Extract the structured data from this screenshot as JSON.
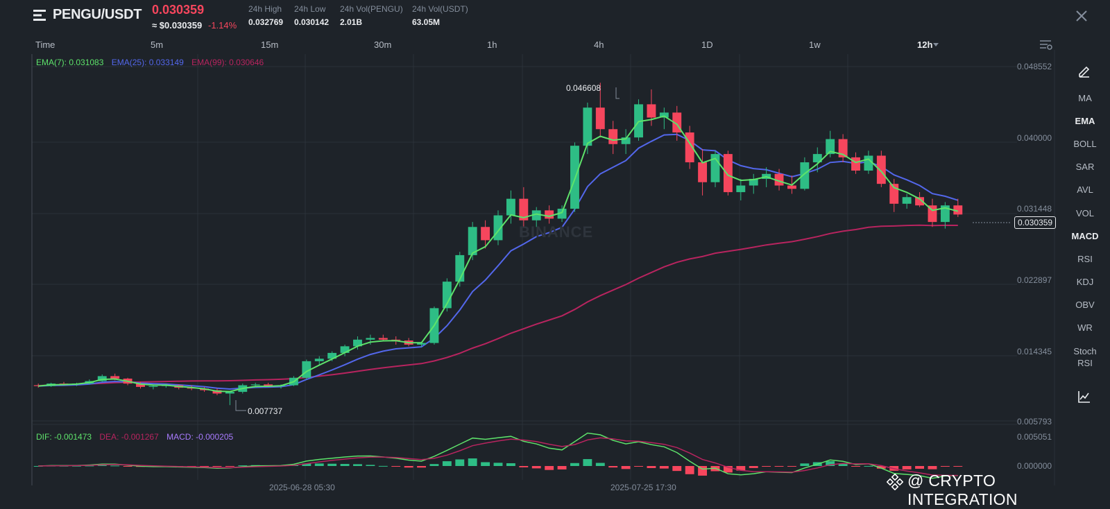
{
  "header": {
    "pair": "PENGU/USDT",
    "price": "0.030359",
    "usd_price": "≈ $0.030359",
    "change": "-1.14%",
    "stats": [
      {
        "label": "24h High",
        "value": "0.032769"
      },
      {
        "label": "24h Low",
        "value": "0.030142"
      },
      {
        "label": "24h Vol(PENGU)",
        "value": "2.01B"
      },
      {
        "label": "24h Vol(USDT)",
        "value": "63.05M"
      }
    ]
  },
  "timeframes": [
    "Time",
    "5m",
    "15m",
    "30m",
    "1h",
    "4h",
    "1D",
    "1w",
    "12h"
  ],
  "active_timeframe": "12h",
  "indicators_legend": {
    "ema7": "EMA(7): 0.031083",
    "ema25": "EMA(25): 0.033149",
    "ema99": "EMA(99): 0.030646"
  },
  "macd_legend": {
    "dif": "DIF: -0.001473",
    "dea": "DEA: -0.001267",
    "macd": "MACD: -0.000205"
  },
  "price_axis": [
    "0.048552",
    "0.040000",
    "0.031448",
    "0.022897",
    "0.014345",
    "0.005793"
  ],
  "macd_axis": [
    "0.005051",
    "0.000000"
  ],
  "current_price_tag": "0.030359",
  "annotations": {
    "high": "0.046608",
    "low": "0.007737"
  },
  "x_labels": [
    "2025-06-28 05:30",
    "2025-07-25 17:30"
  ],
  "watermark": "BINANCE",
  "side_toolbar": [
    "MA",
    "EMA",
    "BOLL",
    "SAR",
    "AVL",
    "VOL",
    "MACD",
    "RSI",
    "KDJ",
    "OBV",
    "WR",
    "Stoch RSI"
  ],
  "active_indicators": [
    "EMA",
    "MACD"
  ],
  "footer_brand": "@ CRYPTO INTEGRATION",
  "icons": {
    "menu": "menu-icon",
    "close": "close-icon",
    "settings": "chart-settings-icon",
    "draw": "pencil-icon",
    "indicator": "line-chart-icon",
    "brand": "binance-logo-icon"
  },
  "colors": {
    "up": "#2ebd85",
    "down": "#f6465d",
    "ema7": "#5ee36b",
    "ema25": "#5367eb",
    "ema99": "#b8245f",
    "dif": "#5ee36b",
    "dea": "#b8245f",
    "macd_label": "#a97bff"
  },
  "chart_data": {
    "type": "candlestick",
    "interval": "12h",
    "y_range": [
      0.005793,
      0.048552
    ],
    "candles_ohlc": [
      [
        0.0101,
        0.0103,
        0.0098,
        0.01
      ],
      [
        0.01,
        0.0104,
        0.0099,
        0.0103
      ],
      [
        0.0103,
        0.0105,
        0.0101,
        0.0102
      ],
      [
        0.0102,
        0.0104,
        0.01,
        0.0103
      ],
      [
        0.0103,
        0.0108,
        0.0102,
        0.0106
      ],
      [
        0.0106,
        0.0114,
        0.0105,
        0.0112
      ],
      [
        0.0112,
        0.0115,
        0.0107,
        0.0109
      ],
      [
        0.0109,
        0.011,
        0.0101,
        0.0103
      ],
      [
        0.0103,
        0.0105,
        0.0097,
        0.0099
      ],
      [
        0.0099,
        0.0102,
        0.0096,
        0.01
      ],
      [
        0.01,
        0.0103,
        0.0098,
        0.0101
      ],
      [
        0.0101,
        0.0102,
        0.0096,
        0.0098
      ],
      [
        0.0098,
        0.0101,
        0.0095,
        0.0097
      ],
      [
        0.0097,
        0.0099,
        0.0093,
        0.0095
      ],
      [
        0.0095,
        0.0097,
        0.0089,
        0.0091
      ],
      [
        0.0091,
        0.0094,
        0.0077,
        0.0093
      ],
      [
        0.0093,
        0.0103,
        0.0091,
        0.0101
      ],
      [
        0.0101,
        0.0104,
        0.0098,
        0.0102
      ],
      [
        0.0102,
        0.0104,
        0.0099,
        0.01
      ],
      [
        0.01,
        0.0102,
        0.0097,
        0.0101
      ],
      [
        0.0101,
        0.0112,
        0.01,
        0.011
      ],
      [
        0.011,
        0.0132,
        0.0108,
        0.013
      ],
      [
        0.013,
        0.0136,
        0.0126,
        0.0133
      ],
      [
        0.0133,
        0.0142,
        0.013,
        0.014
      ],
      [
        0.014,
        0.015,
        0.0136,
        0.0148
      ],
      [
        0.0148,
        0.016,
        0.0144,
        0.0156
      ],
      [
        0.0156,
        0.0162,
        0.015,
        0.0158
      ],
      [
        0.0158,
        0.0162,
        0.0154,
        0.0156
      ],
      [
        0.0156,
        0.016,
        0.015,
        0.0155
      ],
      [
        0.0155,
        0.0158,
        0.0148,
        0.015
      ],
      [
        0.015,
        0.0153,
        0.0147,
        0.0152
      ],
      [
        0.0152,
        0.0196,
        0.015,
        0.0194
      ],
      [
        0.0194,
        0.023,
        0.019,
        0.0226
      ],
      [
        0.0226,
        0.0262,
        0.022,
        0.0258
      ],
      [
        0.0258,
        0.0298,
        0.0252,
        0.0292
      ],
      [
        0.0292,
        0.03,
        0.0266,
        0.0276
      ],
      [
        0.0276,
        0.0312,
        0.027,
        0.0306
      ],
      [
        0.0306,
        0.0336,
        0.0296,
        0.0326
      ],
      [
        0.0326,
        0.034,
        0.0292,
        0.03
      ],
      [
        0.03,
        0.0316,
        0.0292,
        0.0312
      ],
      [
        0.0312,
        0.0318,
        0.0296,
        0.0302
      ],
      [
        0.0302,
        0.0318,
        0.0298,
        0.0314
      ],
      [
        0.0314,
        0.0394,
        0.031,
        0.039
      ],
      [
        0.039,
        0.0442,
        0.038,
        0.0436
      ],
      [
        0.0436,
        0.0466,
        0.04,
        0.041
      ],
      [
        0.041,
        0.042,
        0.038,
        0.0392
      ],
      [
        0.0392,
        0.041,
        0.038,
        0.04
      ],
      [
        0.04,
        0.0446,
        0.0396,
        0.044
      ],
      [
        0.044,
        0.0458,
        0.0414,
        0.0424
      ],
      [
        0.0424,
        0.0436,
        0.041,
        0.043
      ],
      [
        0.043,
        0.0438,
        0.0396,
        0.0406
      ],
      [
        0.0406,
        0.0414,
        0.0362,
        0.037
      ],
      [
        0.037,
        0.0386,
        0.033,
        0.0346
      ],
      [
        0.0346,
        0.0384,
        0.034,
        0.038
      ],
      [
        0.038,
        0.0384,
        0.033,
        0.0334
      ],
      [
        0.0334,
        0.035,
        0.0324,
        0.0342
      ],
      [
        0.0342,
        0.0356,
        0.0332,
        0.035
      ],
      [
        0.035,
        0.0364,
        0.034,
        0.0356
      ],
      [
        0.0356,
        0.0362,
        0.0336,
        0.0342
      ],
      [
        0.0342,
        0.0354,
        0.0332,
        0.0338
      ],
      [
        0.0338,
        0.0376,
        0.0336,
        0.037
      ],
      [
        0.037,
        0.0388,
        0.0358,
        0.038
      ],
      [
        0.038,
        0.0408,
        0.0376,
        0.0398
      ],
      [
        0.0398,
        0.0404,
        0.037,
        0.0376
      ],
      [
        0.0376,
        0.0382,
        0.0356,
        0.036
      ],
      [
        0.036,
        0.0384,
        0.0356,
        0.0378
      ],
      [
        0.0378,
        0.0384,
        0.034,
        0.0344
      ],
      [
        0.0344,
        0.035,
        0.031,
        0.032
      ],
      [
        0.032,
        0.0332,
        0.0314,
        0.0328
      ],
      [
        0.0328,
        0.0334,
        0.0316,
        0.0318
      ],
      [
        0.0318,
        0.0326,
        0.0292,
        0.0298
      ],
      [
        0.0298,
        0.0322,
        0.029,
        0.0318
      ],
      [
        0.0318,
        0.0326,
        0.0304,
        0.0307
      ]
    ]
  }
}
